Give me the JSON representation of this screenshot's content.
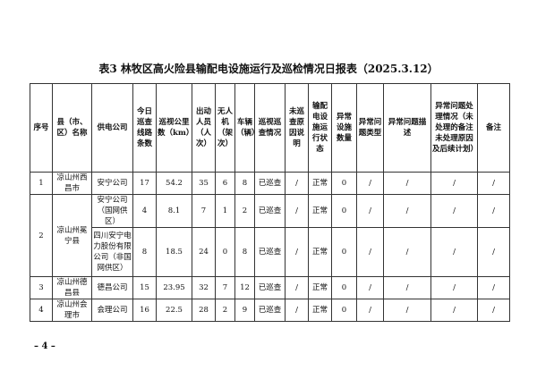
{
  "title": "表3 林牧区高火险县输配电设施运行及巡检情况日报表（2025.3.12）",
  "headers": [
    "序号",
    "县（市、区）名称",
    "供电公司",
    "今日巡查线路条数",
    "巡视公里数（km）",
    "出动人员（人次）",
    "无人机（架次）",
    "车辆（辆）",
    "巡视巡查情况",
    "未巡查原因说明",
    "输配电设施运行状态",
    "异常设施数量",
    "异常问题类型",
    "异常问题描述",
    "异常问题处理情况（未处理的备注未处理原因及后续计划）",
    "备注"
  ],
  "rows": [
    {
      "no": "1",
      "county": "凉山州西昌市",
      "company": "安宁公司",
      "lines": "17",
      "km": "54.2",
      "staff": "35",
      "drones": "6",
      "vehicles": "8",
      "status": "已巡查",
      "reason": "/",
      "state": "正常",
      "count": "0",
      "type": "/",
      "desc": "/",
      "handling": "/",
      "note": "/"
    },
    {
      "no": "2",
      "county": "凉山州冕宁县",
      "company": "安宁公司（国网供区）",
      "lines": "4",
      "km": "8.1",
      "staff": "7",
      "drones": "1",
      "vehicles": "2",
      "status": "已巡查",
      "reason": "/",
      "state": "正常",
      "count": "0",
      "type": "/",
      "desc": "/",
      "handling": "/",
      "note": "/"
    },
    {
      "company": "四川安宁电力股份有限公司（非国网供区）",
      "lines": "8",
      "km": "18.5",
      "staff": "24",
      "drones": "0",
      "vehicles": "8",
      "status": "已巡查",
      "reason": "/",
      "state": "正常",
      "count": "0",
      "type": "/",
      "desc": "/",
      "handling": "/",
      "note": "/"
    },
    {
      "no": "3",
      "county": "凉山州德昌县",
      "company": "德昌公司",
      "lines": "15",
      "km": "23.95",
      "staff": "32",
      "drones": "7",
      "vehicles": "12",
      "status": "已巡查",
      "reason": "/",
      "state": "正常",
      "count": "0",
      "type": "/",
      "desc": "/",
      "handling": "/",
      "note": "/"
    },
    {
      "no": "4",
      "county": "凉山州会理市",
      "company": "会理公司",
      "lines": "16",
      "km": "22.5",
      "staff": "28",
      "drones": "2",
      "vehicles": "9",
      "status": "已巡查",
      "reason": "/",
      "state": "正常",
      "count": "0",
      "type": "/",
      "desc": "/",
      "handling": "/",
      "note": "/"
    }
  ],
  "page_number": "– 4 –"
}
